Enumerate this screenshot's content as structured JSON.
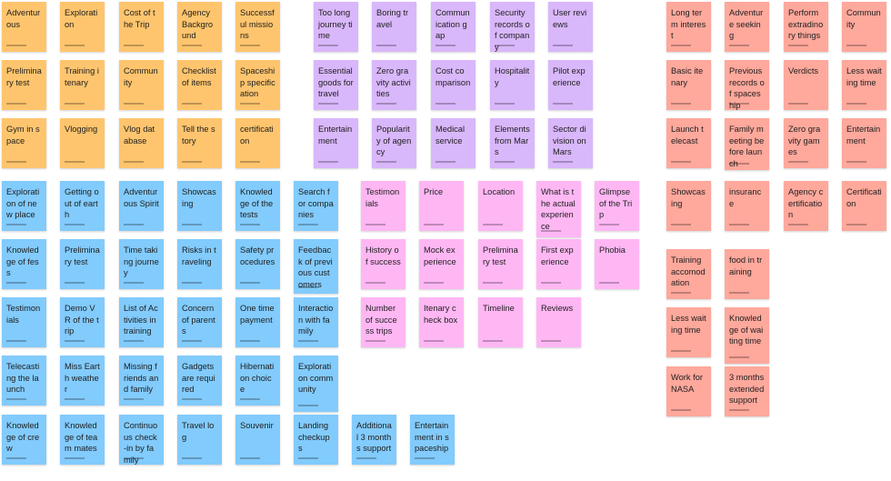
{
  "groups": [
    {
      "color": "#ffc56e",
      "notes": [
        "Adventurous",
        "Exploration",
        "Cost of the Trip",
        "Agency Background",
        "Successful missions",
        "Preliminary test",
        "Training itenary",
        "Community",
        "Checklist of items",
        "Spaceship specification",
        "Gym in space",
        "Vlogging",
        "Vlog database",
        "Tell the story",
        "certification"
      ]
    },
    {
      "color": "#d9b7fb",
      "notes": [
        "Too long journey time",
        "Boring travel",
        "Communication gap",
        "Security records of company",
        "User reviews",
        "Essential goods for travel",
        "Zero gravity activities",
        "Cost comparison",
        "Hospitality",
        "Pilot experience",
        "Entertainment",
        "Popularity of agency",
        "Medical service",
        "Elements from Mars",
        "Sector division on Mars"
      ]
    },
    {
      "color": "#82cbfd",
      "notes": [
        "Exploration of new place",
        "Getting out of earth",
        "Adventurous Spirit",
        "Showcasing",
        "Knowledge of the tests",
        "Search for companies",
        "Knowledge of fess",
        "Preliminary test",
        "Time taking journey",
        "Risks in traveling",
        "Safety procedures",
        "Feedback of previous customers",
        "Testimonials",
        "Demo VR of the trip",
        "List of Activities in training",
        "Concern of parents",
        "One time payment",
        "Interaction with family",
        "Telecasting the launch",
        "Miss Earth weather",
        "Missing friends and family",
        "Gadgets are required",
        "Hibernation choice",
        "Exploration community",
        "Knowledge of crew",
        "Knowledge of team mates",
        "Continuous check-in by family",
        "Travel log",
        "Souvenir",
        "Landing checkups",
        "Additional 3 months support",
        "Entertainment in spaceship"
      ]
    },
    {
      "color": "#ffb7f4",
      "notes": [
        "Testimonials",
        "Price",
        "Location",
        "What is the actual experience",
        "Glimpse of the Trip",
        "History of success",
        "Mock experience",
        "Preliminary test",
        "First experience",
        "Phobia",
        "Number of success trips",
        "Itenary check box",
        "Timeline",
        "Reviews"
      ]
    },
    {
      "color": "#ffa89c",
      "notes": [
        "Long term interest",
        "Adventure seeking",
        "Perform extradinory things",
        "Community",
        "Basic itenary",
        "Previous records of spaceship",
        "Verdicts",
        "Less waiting time",
        "Launch telecast",
        "Family meeting before launch",
        "Zero gravity games",
        "Entertainment",
        "Showcasing",
        "insurance",
        "Agency certification",
        "Certification",
        "Training accomodation",
        "food in training",
        "Less waiting time",
        "Knowledge of waiting time",
        "Work for NASA",
        "3 months extended support"
      ]
    }
  ]
}
